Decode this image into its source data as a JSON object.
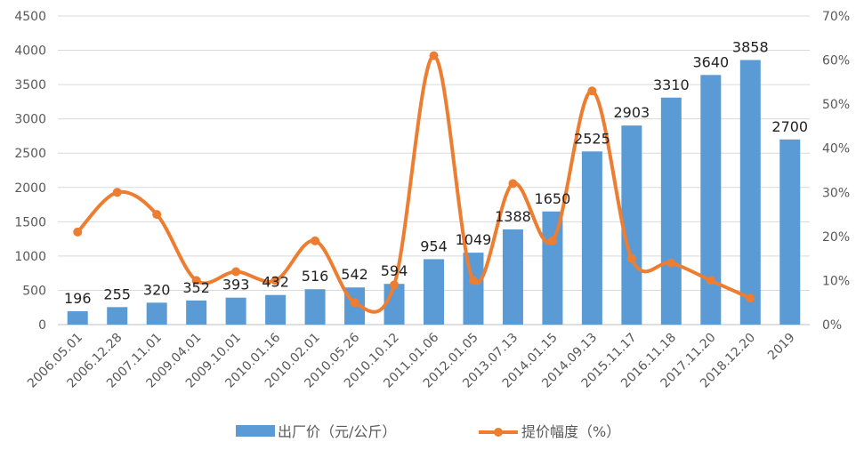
{
  "chart_data": {
    "type": "bar",
    "categories": [
      "2006.05.01",
      "2006.12.28",
      "2007.11.01",
      "2009.04.01",
      "2009.10.01",
      "2010.01.16",
      "2010.02.01",
      "2010.05.26",
      "2010.10.12",
      "2011.01.06",
      "2012.01.05",
      "2013.07.13",
      "2014.01.15",
      "2014.09.13",
      "2015.11.17",
      "2016.11.18",
      "2017.11.20",
      "2018.12.20",
      "2019"
    ],
    "series": [
      {
        "name": "出厂价（元/公斤）",
        "type": "bar",
        "axis": "left",
        "color": "#5B9BD5",
        "values": [
          196,
          255,
          320,
          352,
          393,
          432,
          516,
          542,
          594,
          954,
          1049,
          1388,
          1650,
          2525,
          2903,
          3310,
          3640,
          3858,
          2700
        ]
      },
      {
        "name": "提价幅度（%）",
        "type": "line",
        "axis": "right",
        "color": "#ED7D31",
        "values": [
          21,
          30,
          25,
          10,
          12,
          10,
          19,
          5,
          9,
          61,
          10,
          32,
          19,
          53,
          15,
          14,
          10,
          6,
          null
        ]
      }
    ],
    "y_left": {
      "min": 0,
      "max": 4500,
      "step": 500,
      "ticks": [
        "0",
        "500",
        "1000",
        "1500",
        "2000",
        "2500",
        "3000",
        "3500",
        "4000",
        "4500"
      ]
    },
    "y_right": {
      "min": 0,
      "max": 70,
      "step": 10,
      "ticks": [
        "0%",
        "10%",
        "20%",
        "30%",
        "40%",
        "50%",
        "60%",
        "70%"
      ]
    },
    "grid": true,
    "legend_position": "bottom"
  }
}
